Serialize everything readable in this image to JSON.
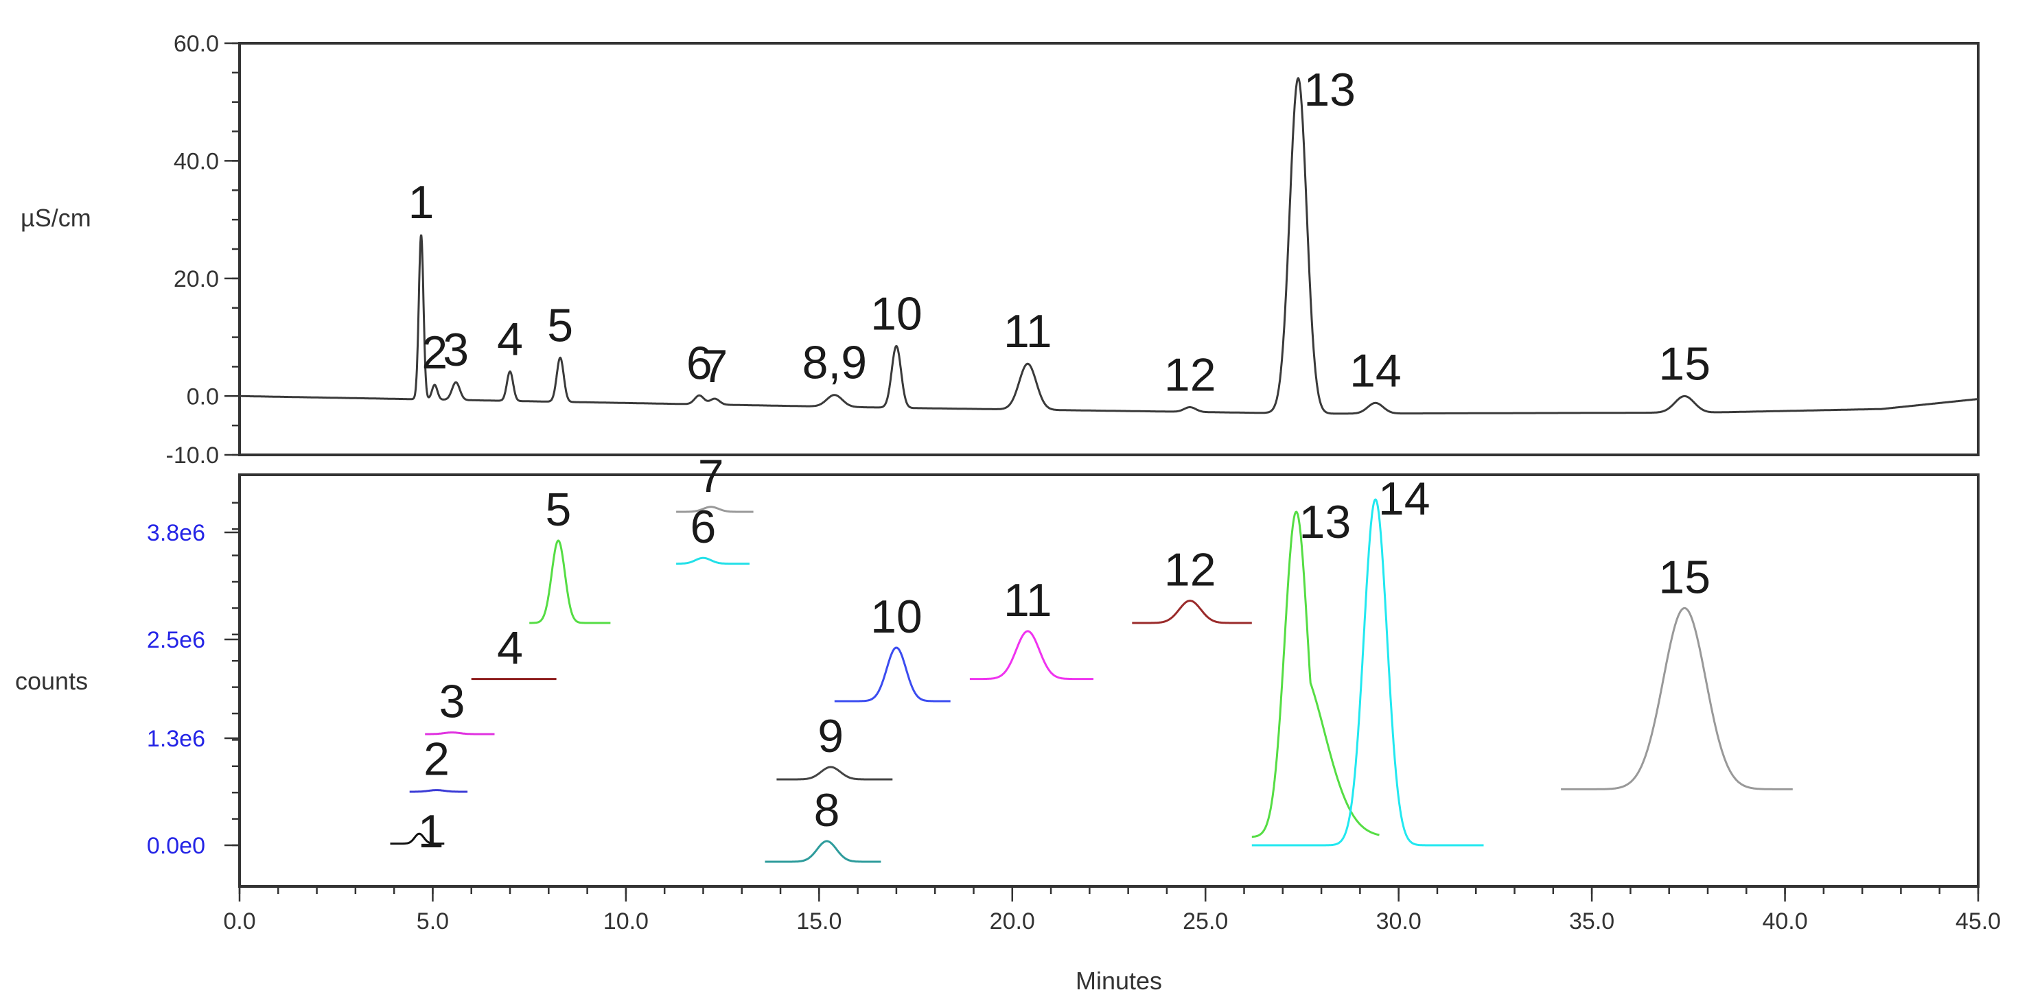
{
  "chart_data": [
    {
      "type": "line",
      "panel": "top",
      "ylabel": "µS/cm",
      "xlim": [
        0,
        45
      ],
      "ylim": [
        -10,
        60
      ],
      "y_ticks": [
        "60.0",
        "40.0",
        "20.0",
        "0.0",
        "-10.0"
      ],
      "y_tick_values": [
        60,
        40,
        20,
        0,
        -10
      ],
      "grid": false,
      "series": [
        {
          "color": "#3a3a3a",
          "baseline": [
            [
              0,
              0
            ],
            [
              17,
              -2.0
            ],
            [
              28,
              -3.0
            ],
            [
              38,
              -2.8
            ],
            [
              42.5,
              -2.2
            ],
            [
              45,
              -0.5
            ]
          ],
          "peaks": [
            {
              "label": "1",
              "x": 4.7,
              "height": 28,
              "width": 0.06
            },
            {
              "label": "2",
              "x": 5.05,
              "height": 2.5,
              "width": 0.07
            },
            {
              "label": "3",
              "x": 5.6,
              "height": 3.0,
              "width": 0.1
            },
            {
              "label": "4",
              "x": 7.0,
              "height": 5.0,
              "width": 0.08
            },
            {
              "label": "5",
              "x": 8.3,
              "height": 7.5,
              "width": 0.09
            },
            {
              "label": "6",
              "x": 11.9,
              "height": 1.5,
              "width": 0.12
            },
            {
              "label": "7",
              "x": 12.3,
              "height": 1.0,
              "width": 0.12
            },
            {
              "label": "8,9",
              "x": 15.4,
              "height": 2.0,
              "width": 0.2
            },
            {
              "label": "10",
              "x": 17.0,
              "height": 10.5,
              "width": 0.12
            },
            {
              "label": "11",
              "x": 20.4,
              "height": 7.8,
              "width": 0.22
            },
            {
              "label": "12",
              "x": 24.6,
              "height": 0.8,
              "width": 0.15
            },
            {
              "label": "13",
              "x": 27.4,
              "height": 57,
              "width": 0.22
            },
            {
              "label": "14",
              "x": 29.4,
              "height": 1.8,
              "width": 0.2
            },
            {
              "label": "15",
              "x": 37.4,
              "height": 2.8,
              "width": 0.25
            }
          ]
        }
      ]
    },
    {
      "type": "line",
      "panel": "bottom",
      "xlabel": "Minutes",
      "ylabel": "counts",
      "xlim": [
        0,
        45
      ],
      "ylim": [
        -0.5,
        4.5
      ],
      "y_ticks": [
        "3.8e6",
        "2.5e6",
        "1.3e6",
        "0.0e0"
      ],
      "y_tick_values": [
        3.8,
        2.5,
        1.3,
        0.0
      ],
      "x_ticks": [
        "0.0",
        "5.0",
        "10.0",
        "15.0",
        "20.0",
        "25.0",
        "30.0",
        "35.0",
        "40.0",
        "45.0"
      ],
      "x_tick_values": [
        0,
        5,
        10,
        15,
        20,
        25,
        30,
        35,
        40,
        45
      ],
      "grid": false,
      "series": [
        {
          "label": "1",
          "color": "#111111",
          "x_range": [
            3.9,
            5.3
          ],
          "baseline": 0.02,
          "peak_x": 4.65,
          "height": 0.12,
          "width": 0.12
        },
        {
          "label": "2",
          "color": "#3b3bd6",
          "x_range": [
            4.4,
            5.9
          ],
          "baseline": 0.65,
          "peak_x": 5.1,
          "height": 0.02,
          "width": 0.2
        },
        {
          "label": "3",
          "color": "#e033e0",
          "x_range": [
            4.8,
            6.6
          ],
          "baseline": 1.35,
          "peak_x": 5.5,
          "height": 0.02,
          "width": 0.2
        },
        {
          "label": "4",
          "color": "#8b1a1a",
          "x_range": [
            6.0,
            8.2
          ],
          "baseline": 2.02,
          "peak_x": 7.0,
          "height": 0.0,
          "width": 0.2
        },
        {
          "label": "5",
          "color": "#55dd44",
          "x_range": [
            7.5,
            9.6
          ],
          "baseline": 2.7,
          "peak_x": 8.25,
          "height": 1.0,
          "width": 0.17
        },
        {
          "label": "6",
          "color": "#22e0e8",
          "x_range": [
            11.3,
            13.2
          ],
          "baseline": 3.42,
          "peak_x": 12.0,
          "height": 0.07,
          "width": 0.2
        },
        {
          "label": "7",
          "color": "#999999",
          "x_range": [
            11.3,
            13.3
          ],
          "baseline": 4.05,
          "peak_x": 12.2,
          "height": 0.06,
          "width": 0.2
        },
        {
          "label": "8",
          "color": "#2e9c9c",
          "x_range": [
            13.6,
            16.6
          ],
          "baseline": -0.2,
          "peak_x": 15.2,
          "height": 0.25,
          "width": 0.25
        },
        {
          "label": "9",
          "color": "#444444",
          "x_range": [
            13.9,
            16.9
          ],
          "baseline": 0.8,
          "peak_x": 15.3,
          "height": 0.15,
          "width": 0.25
        },
        {
          "label": "10",
          "color": "#3b4cf0",
          "x_range": [
            15.4,
            18.4
          ],
          "baseline": 1.75,
          "peak_x": 17.0,
          "height": 0.65,
          "width": 0.25
        },
        {
          "label": "11",
          "color": "#ef33ef",
          "x_range": [
            18.9,
            22.1
          ],
          "baseline": 2.02,
          "peak_x": 20.4,
          "height": 0.58,
          "width": 0.3
        },
        {
          "label": "12",
          "color": "#9a2a2a",
          "x_range": [
            23.1,
            26.2
          ],
          "baseline": 2.7,
          "peak_x": 24.6,
          "height": 0.27,
          "width": 0.28
        },
        {
          "label": "13",
          "color": "#55dd44",
          "x_range": [
            26.2,
            29.5
          ],
          "baseline": 0.1,
          "peak_x": 27.35,
          "height": 3.95,
          "width": 0.3,
          "tail": 0.9
        },
        {
          "label": "14",
          "color": "#22e8f0",
          "x_range": [
            26.2,
            32.2
          ],
          "baseline": 0.0,
          "peak_x": 29.4,
          "height": 4.2,
          "width": 0.3
        },
        {
          "label": "15",
          "color": "#999999",
          "x_range": [
            34.2,
            40.2
          ],
          "baseline": 0.68,
          "peak_x": 37.4,
          "height": 2.2,
          "width": 0.55
        }
      ]
    }
  ]
}
